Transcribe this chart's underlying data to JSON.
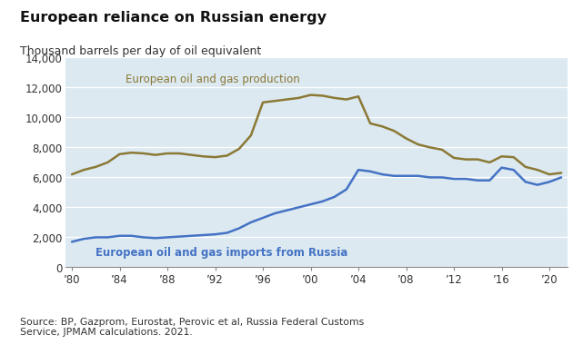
{
  "title": "European reliance on Russian energy",
  "subtitle": "Thousand barrels per day of oil equivalent",
  "source_text": "Source: BP, Gazprom, Eurostat, Perovic et al, Russia Federal Customs\nService, JPMAM calculations. 2021.",
  "background_color": "#dce9f1",
  "fig_background": "#ffffff",
  "years_production": [
    1980,
    1981,
    1982,
    1983,
    1984,
    1985,
    1986,
    1987,
    1988,
    1989,
    1990,
    1991,
    1992,
    1993,
    1994,
    1995,
    1996,
    1997,
    1998,
    1999,
    2000,
    2001,
    2002,
    2003,
    2004,
    2005,
    2006,
    2007,
    2008,
    2009,
    2010,
    2011,
    2012,
    2013,
    2014,
    2015,
    2016,
    2017,
    2018,
    2019,
    2020,
    2021
  ],
  "production": [
    6200,
    6500,
    6700,
    7000,
    7550,
    7650,
    7600,
    7500,
    7600,
    7600,
    7500,
    7400,
    7350,
    7450,
    7900,
    8800,
    11000,
    11100,
    11200,
    11300,
    11500,
    11450,
    11300,
    11200,
    11400,
    9600,
    9400,
    9100,
    8600,
    8200,
    8000,
    7850,
    7300,
    7200,
    7200,
    7000,
    7400,
    7350,
    6700,
    6500,
    6200,
    6300
  ],
  "years_imports": [
    1980,
    1981,
    1982,
    1983,
    1984,
    1985,
    1986,
    1987,
    1988,
    1989,
    1990,
    1991,
    1992,
    1993,
    1994,
    1995,
    1996,
    1997,
    1998,
    1999,
    2000,
    2001,
    2002,
    2003,
    2004,
    2005,
    2006,
    2007,
    2008,
    2009,
    2010,
    2011,
    2012,
    2013,
    2014,
    2015,
    2016,
    2017,
    2018,
    2019,
    2020,
    2021
  ],
  "imports": [
    1700,
    1900,
    2000,
    2000,
    2100,
    2100,
    2000,
    1950,
    2000,
    2050,
    2100,
    2150,
    2200,
    2300,
    2600,
    3000,
    3300,
    3600,
    3800,
    4000,
    4200,
    4400,
    4700,
    5200,
    6500,
    6400,
    6200,
    6100,
    6100,
    6100,
    6000,
    6000,
    5900,
    5900,
    5800,
    5800,
    6650,
    6500,
    5700,
    5500,
    5700,
    6000
  ],
  "production_color": "#8B7935",
  "imports_color": "#4472C4",
  "production_label": "European oil and gas production",
  "imports_label": "European oil and gas imports from Russia",
  "ylim": [
    0,
    14000
  ],
  "yticks": [
    0,
    2000,
    4000,
    6000,
    8000,
    10000,
    12000,
    14000
  ],
  "xticks": [
    1980,
    1984,
    1988,
    1992,
    1996,
    2000,
    2004,
    2008,
    2012,
    2016,
    2020
  ],
  "xlim": [
    1979.5,
    2021.5
  ]
}
